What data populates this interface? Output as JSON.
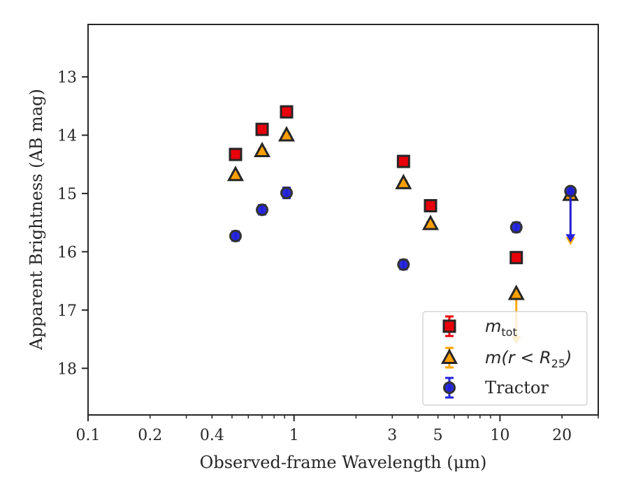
{
  "chart_data": {
    "type": "scatter",
    "xlabel": "Observed-frame Wavelength (μm)",
    "ylabel": "Apparent Brightness (AB mag)",
    "xscale": "log",
    "xlim": [
      0.1,
      30
    ],
    "ylim": [
      18.8,
      12.1
    ],
    "y_inverted": true,
    "x_ticks": [
      0.1,
      0.2,
      0.4,
      1,
      3,
      5,
      10,
      20
    ],
    "x_tick_labels": [
      "0.1",
      "0.2",
      "0.4",
      "1",
      "3",
      "5",
      "10",
      "20"
    ],
    "y_ticks": [
      13,
      14,
      15,
      16,
      17,
      18
    ],
    "y_tick_labels": [
      "13",
      "14",
      "15",
      "16",
      "17",
      "18"
    ],
    "grid": false,
    "legend_position": "lower-right",
    "series": [
      {
        "name_main": "m",
        "name_sub": "tot",
        "marker": "square",
        "color": "#e8000b",
        "errcolor": "#e8000b",
        "points": [
          {
            "x": 0.52,
            "y": 14.33,
            "yerr": 0.04
          },
          {
            "x": 0.7,
            "y": 13.9,
            "yerr": 0.03
          },
          {
            "x": 0.92,
            "y": 13.6,
            "yerr": 0.04
          },
          {
            "x": 3.4,
            "y": 14.45,
            "yerr": 0.03
          },
          {
            "x": 4.6,
            "y": 15.21,
            "yerr": 0.03
          },
          {
            "x": 12.0,
            "y": 16.1,
            "yerr": 0.05
          }
        ]
      },
      {
        "name_main": "m(r < R",
        "name_sub": "25",
        "name_tail": ")",
        "marker": "triangle",
        "color": "#ff9f00",
        "errcolor": "#ffa500",
        "points": [
          {
            "x": 0.52,
            "y": 14.68,
            "yerr": 0.03
          },
          {
            "x": 0.7,
            "y": 14.27,
            "yerr": 0.03
          },
          {
            "x": 0.92,
            "y": 14.0,
            "yerr": 0.03
          },
          {
            "x": 3.4,
            "y": 14.82,
            "yerr": 0.03
          },
          {
            "x": 4.6,
            "y": 15.52,
            "yerr": 0.03
          },
          {
            "x": 12.0,
            "y": 16.72,
            "yerr": 0.05,
            "limit_to": 17.55
          },
          {
            "x": 22.0,
            "y": 15.02,
            "yerr": 0.04,
            "limit_to": 15.85
          }
        ]
      },
      {
        "name_main": "Tractor",
        "marker": "circle",
        "color": "#1f1fd8",
        "errcolor": "#2222dd",
        "points": [
          {
            "x": 0.52,
            "y": 15.73,
            "yerr": 0.08
          },
          {
            "x": 0.7,
            "y": 15.28,
            "yerr": 0.08
          },
          {
            "x": 0.92,
            "y": 14.99,
            "yerr": 0.09
          },
          {
            "x": 3.4,
            "y": 16.22,
            "yerr": 0.08
          },
          {
            "x": 12.0,
            "y": 15.58,
            "yerr": 0.08
          },
          {
            "x": 22.0,
            "y": 14.96,
            "yerr": 0.03,
            "limit_to": 15.8
          }
        ]
      }
    ]
  }
}
